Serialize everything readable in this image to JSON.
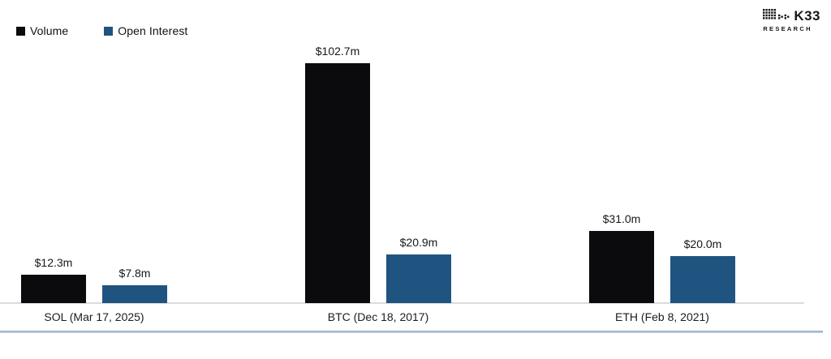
{
  "brand": {
    "logo_text": "K33",
    "logo_subtext": "RESEARCH"
  },
  "chart_data": {
    "type": "bar",
    "title": "",
    "categories": [
      "SOL (Mar 17, 2025)",
      "BTC (Dec 18, 2017)",
      "ETH (Feb 8, 2021)"
    ],
    "series": [
      {
        "name": "Volume",
        "color": "#0b0b0d",
        "values": [
          12.3,
          102.7,
          31.0
        ],
        "labels": [
          "$12.3m",
          "$102.7m",
          "$31.0m"
        ]
      },
      {
        "name": "Open Interest",
        "color": "#1f5480",
        "values": [
          7.8,
          20.9,
          20.0
        ],
        "labels": [
          "$7.8m",
          "$20.9m",
          "$20.0m"
        ]
      }
    ],
    "ylim": [
      0,
      105
    ],
    "grid": false,
    "y_axis_shown": false,
    "legend_position": "top-left",
    "value_label_format": "$#.#m"
  },
  "colors": {
    "bar_volume": "#0b0b0d",
    "bar_open_interest": "#1f5480",
    "axis_line": "#dcdcdc",
    "bottom_rule": "#a4bbd2",
    "text": "#15171a"
  }
}
